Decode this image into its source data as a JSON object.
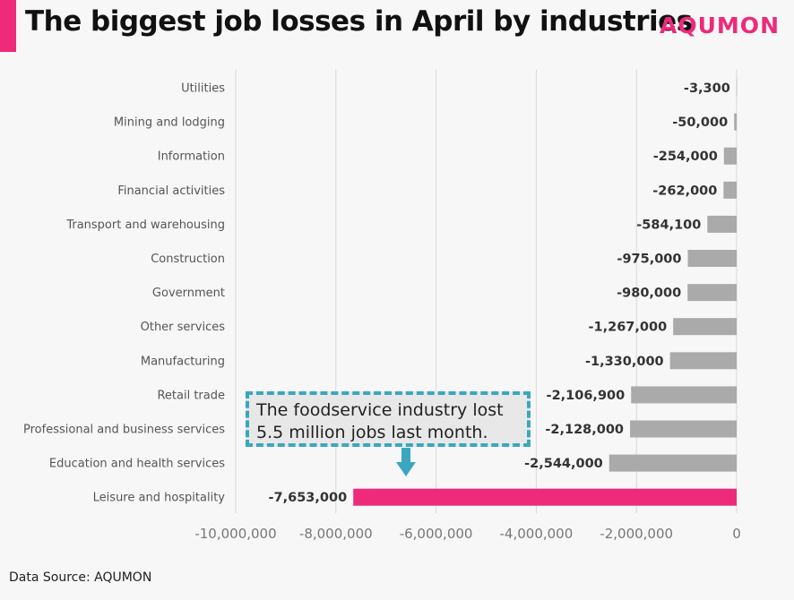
{
  "header": {
    "title": "The biggest job losses in April by industries",
    "brand": "AQUMON"
  },
  "footer": {
    "source": "Data Source: AQUMON"
  },
  "annotation": {
    "line1": "The foodservice industry lost",
    "line2": "5.5 million jobs last month."
  },
  "colors": {
    "accent": "#ee2a7b",
    "bar": "#aaaaaa",
    "highlight": "#ee2a7b",
    "callout_border": "#3aa7bf",
    "grid": "#d8d8d8"
  },
  "chart_data": {
    "type": "bar",
    "orientation": "horizontal",
    "title": "The biggest job losses in April by industries",
    "xlim": [
      -10000000,
      0
    ],
    "xticks": [
      -10000000,
      -8000000,
      -6000000,
      -4000000,
      -2000000,
      0
    ],
    "xtick_labels": [
      "-10,000,000",
      "-8,000,000",
      "-6,000,000",
      "-4,000,000",
      "-2,000,000",
      "0"
    ],
    "grid": true,
    "categories": [
      "Utilities",
      "Mining and lodging",
      "Information",
      "Financial activities",
      "Transport and warehousing",
      "Construction",
      "Government",
      "Other services",
      "Manufacturing",
      "Retail trade",
      "Professional and business services",
      "Education and health services",
      "Leisure and hospitality"
    ],
    "values": [
      -3300,
      -50000,
      -254000,
      -262000,
      -584100,
      -975000,
      -980000,
      -1267000,
      -1330000,
      -2106900,
      -2128000,
      -2544000,
      -7653000
    ],
    "data_labels": [
      "-3,300",
      "-50,000",
      "-254,000",
      "-262,000",
      "-584,100",
      "-975,000",
      "-980,000",
      "-1,267,000",
      "-1,330,000",
      "-2,106,900",
      "-2,128,000",
      "-2,544,000",
      "-7,653,000"
    ],
    "highlight_category": "Leisure and hospitality"
  }
}
